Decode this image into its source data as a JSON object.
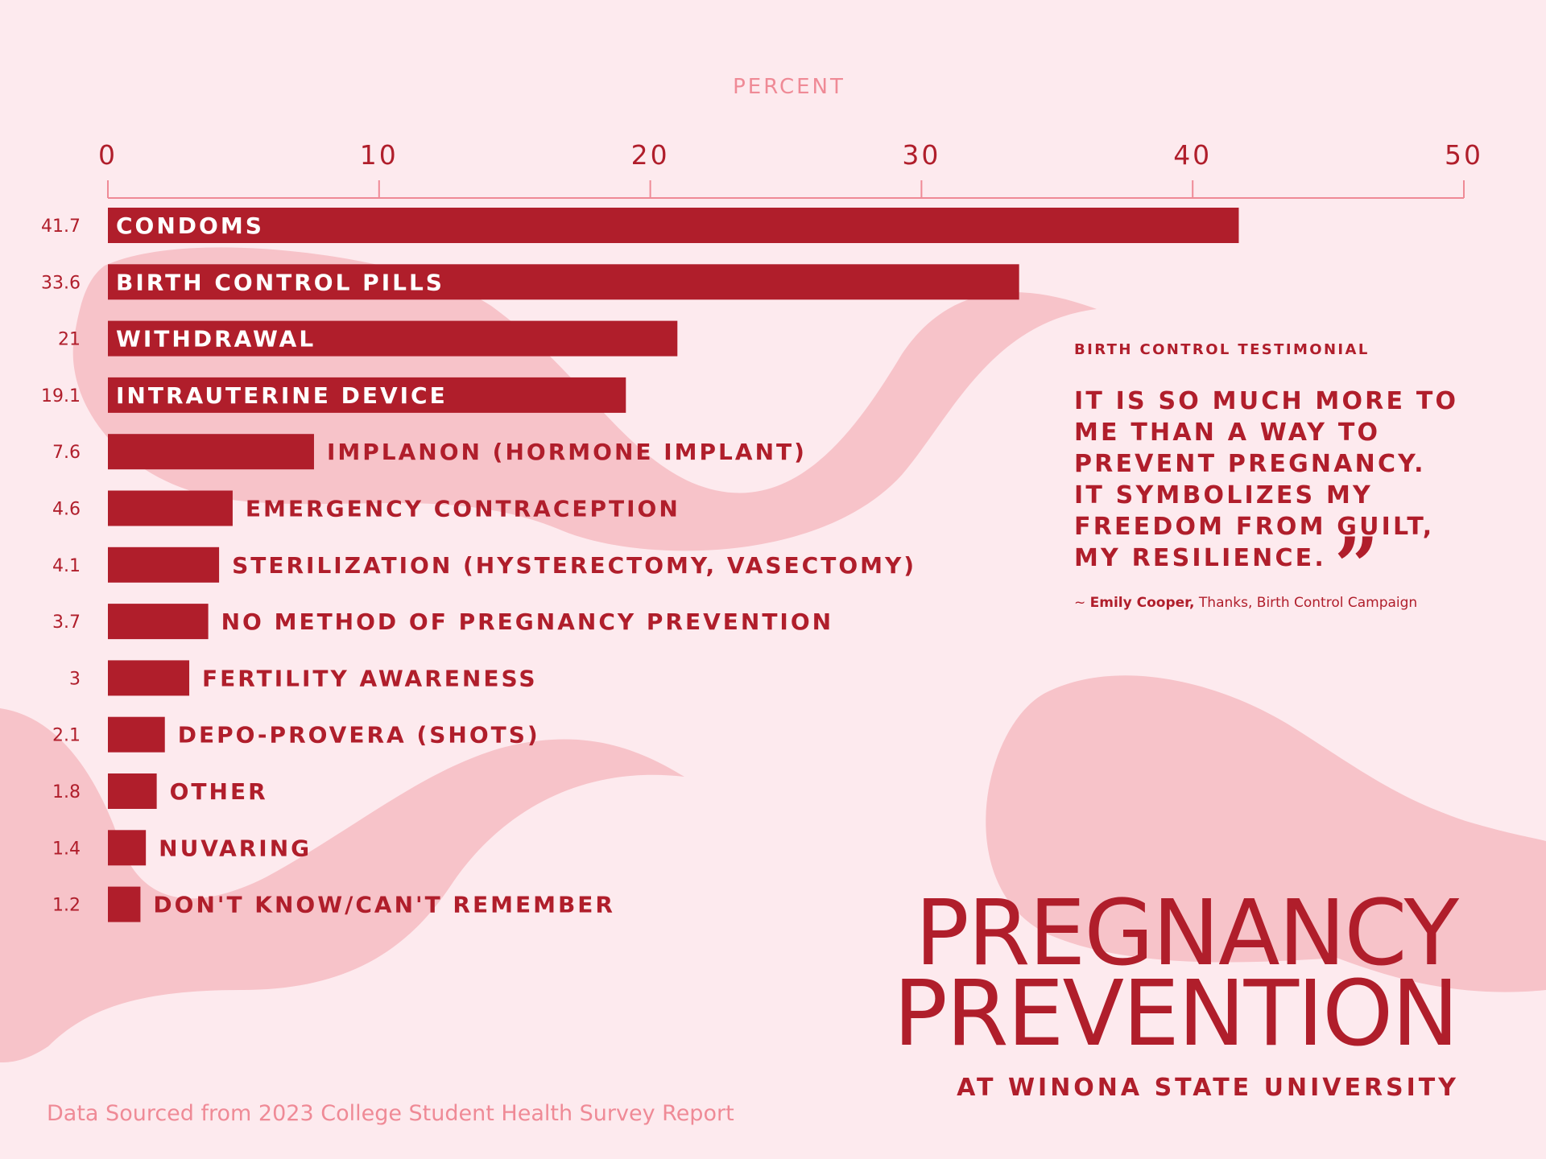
{
  "colors": {
    "background": "#fdeaee",
    "shape": "#f7c3c9",
    "bar": "#b01e2b",
    "accent_light": "#ef8a96"
  },
  "chart_data": {
    "type": "bar",
    "orientation": "horizontal",
    "xlabel": "PERCENT",
    "xlim": [
      0,
      50
    ],
    "xticks": [
      0,
      10,
      20,
      30,
      40,
      50
    ],
    "grid": false,
    "legend": "none",
    "categories": [
      "CONDOMS",
      "BIRTH CONTROL PILLS",
      "WITHDRAWAL",
      "INTRAUTERINE DEVICE",
      "IMPLANON (HORMONE IMPLANT)",
      "EMERGENCY CONTRACEPTION",
      "STERILIZATION (HYSTERECTOMY, VASECTOMY)",
      "NO METHOD OF PREGNANCY PREVENTION",
      "FERTILITY AWARENESS",
      "DEPO-PROVERA (SHOTS)",
      "OTHER",
      "NUVARING",
      "DON'T KNOW/CAN'T REMEMBER"
    ],
    "values": [
      41.7,
      33.6,
      21,
      19.1,
      7.6,
      4.6,
      4.1,
      3.7,
      3,
      2.1,
      1.8,
      1.4,
      1.2
    ],
    "value_labels": [
      "41.7",
      "33.6",
      "21",
      "19.1",
      "7.6",
      "4.6",
      "4.1",
      "3.7",
      "3",
      "2.1",
      "1.8",
      "1.4",
      "1.2"
    ]
  },
  "testimonial": {
    "heading": "BIRTH CONTROL TESTIMONIAL",
    "quote": "IT IS SO MUCH MORE TO ME THAN A WAY TO PREVENT PREGNANCY. IT SYMBOLIZES MY FREEDOM FROM GUILT, MY RESILIENCE.",
    "quote_mark": "”",
    "attribution_prefix": "~",
    "author": "Emily Cooper,",
    "source": "Thanks, Birth Control Campaign"
  },
  "title": {
    "line1": "PREGNANCY",
    "line2": "PREVENTION",
    "subtitle": "AT WINONA STATE UNIVERSITY"
  },
  "footer": {
    "source_note": "Data Sourced from 2023 College Student Health Survey Report"
  }
}
